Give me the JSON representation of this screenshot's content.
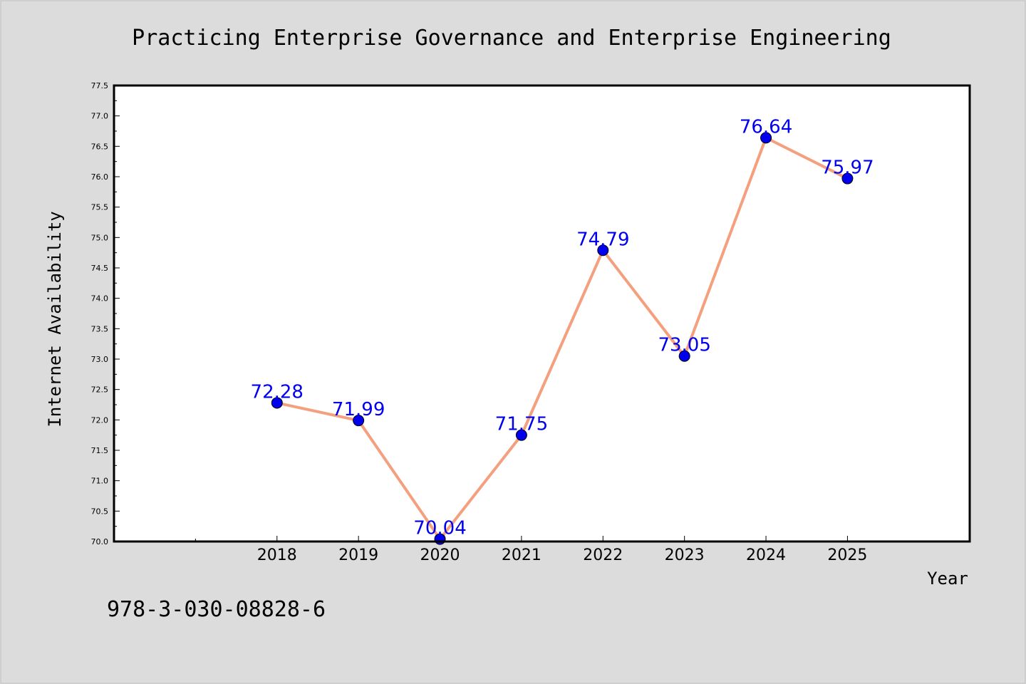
{
  "chart_data": {
    "type": "line",
    "title": "Practicing Enterprise Governance and Enterprise Engineering",
    "xlabel": "Year",
    "ylabel": "Internet Availability",
    "x": [
      2018,
      2019,
      2020,
      2021,
      2022,
      2023,
      2024,
      2025
    ],
    "x_tick_labels": [
      "2018",
      "2019",
      "2020",
      "2021",
      "2022",
      "2023",
      "2024",
      "2025"
    ],
    "series": [
      {
        "values": [
          72.28,
          71.99,
          70.04,
          71.75,
          74.79,
          73.05,
          76.64,
          75.97
        ],
        "labels": [
          "72.28",
          "71.99",
          "70.04",
          "71.75",
          "74.79",
          "73.05",
          "76.64",
          "75.97"
        ]
      }
    ],
    "ylim": [
      70.0,
      77.5
    ],
    "xlim": [
      2016,
      2026.5
    ],
    "y_ticks": [
      "70.0",
      "70.5",
      "71.0",
      "71.5",
      "72.0",
      "72.5",
      "73.0",
      "73.5",
      "74.0",
      "74.5",
      "75.0",
      "75.5",
      "76.0",
      "76.5",
      "77.0",
      "77.5"
    ],
    "grid": false,
    "line_color": "#f4a07e",
    "marker_color": "#0000ee",
    "label_color": "#0000ee",
    "background_color": "#dcdcdc",
    "plot_background_color": "#ffffff"
  },
  "footer": {
    "isbn": "978-3-030-08828-6"
  }
}
